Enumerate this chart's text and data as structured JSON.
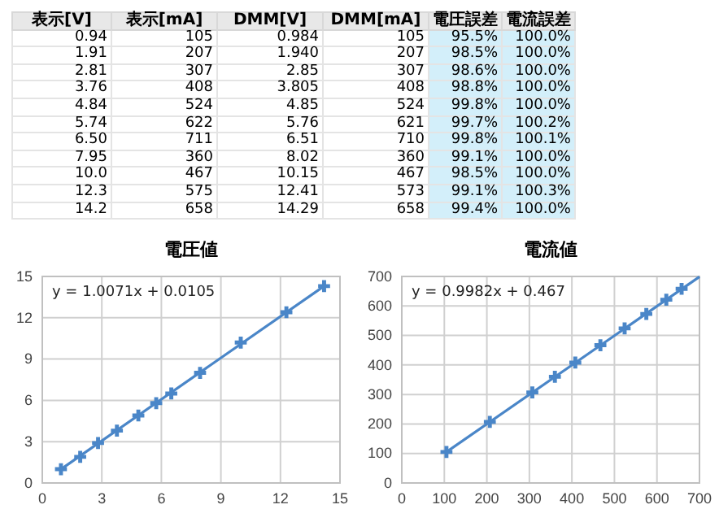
{
  "chart_data": [
    {
      "type": "other",
      "categories": [
        "表示[V]",
        "表示[mA]",
        "DMM[V]",
        "DMM[mA]",
        "電圧誤差",
        "電流誤差"
      ],
      "cell_labels": [
        [
          "0.94",
          "105",
          "0.984",
          "105",
          "95.5%",
          "100.0%"
        ],
        [
          "1.91",
          "207",
          "1.940",
          "207",
          "98.5%",
          "100.0%"
        ],
        [
          "2.81",
          "307",
          "2.85",
          "307",
          "98.6%",
          "100.0%"
        ],
        [
          "3.76",
          "408",
          "3.805",
          "408",
          "98.8%",
          "100.0%"
        ],
        [
          "4.84",
          "524",
          "4.85",
          "524",
          "99.8%",
          "100.0%"
        ],
        [
          "5.74",
          "622",
          "5.76",
          "621",
          "99.7%",
          "100.2%"
        ],
        [
          "6.50",
          "711",
          "6.51",
          "710",
          "99.8%",
          "100.1%"
        ],
        [
          "7.95",
          "360",
          "8.02",
          "360",
          "99.1%",
          "100.0%"
        ],
        [
          "10.0",
          "467",
          "10.15",
          "467",
          "98.5%",
          "100.0%"
        ],
        [
          "12.3",
          "575",
          "12.41",
          "573",
          "99.1%",
          "100.3%"
        ],
        [
          "14.2",
          "658",
          "14.29",
          "658",
          "99.4%",
          "100.0%"
        ]
      ]
    },
    {
      "type": "scatter",
      "title": "電圧値",
      "xlim": [
        0,
        15
      ],
      "ylim": [
        0,
        15
      ],
      "xticks": [
        0,
        3,
        6,
        9,
        12,
        15
      ],
      "yticks": [
        0,
        3,
        6,
        9,
        12,
        15
      ],
      "grid": true,
      "annotations": [
        "y = 1.0071x + 0.0105"
      ],
      "series": [
        {
          "type": "line",
          "color": "#4a86c8",
          "x": [
            0.94,
            14.2
          ],
          "values": [
            1.0,
            14.3
          ]
        },
        {
          "type": "scatter",
          "color": "#4a86c8",
          "marker": "cross",
          "x": [
            0.94,
            1.91,
            2.81,
            3.76,
            4.84,
            5.74,
            6.5,
            7.95,
            10.0,
            12.3,
            14.2
          ],
          "values": [
            1.0,
            1.9,
            2.9,
            3.8,
            4.9,
            5.8,
            6.5,
            8.0,
            10.2,
            12.4,
            14.3
          ]
        }
      ]
    },
    {
      "type": "scatter",
      "title": "電流値",
      "xlim": [
        0,
        700
      ],
      "ylim": [
        0,
        700
      ],
      "xticks": [
        0,
        100,
        200,
        300,
        400,
        500,
        600,
        700
      ],
      "yticks": [
        0,
        100,
        200,
        300,
        400,
        500,
        600,
        700
      ],
      "grid": true,
      "annotations": [
        "y = 0.9982x + 0.467"
      ],
      "series": [
        {
          "type": "line",
          "color": "#4a86c8",
          "x": [
            105,
            700
          ],
          "values": [
            105,
            699
          ]
        },
        {
          "type": "scatter",
          "color": "#4a86c8",
          "marker": "cross",
          "x": [
            105,
            207,
            307,
            408,
            524,
            622,
            null,
            360,
            467,
            575,
            658
          ],
          "values": [
            105,
            207,
            307,
            408,
            524,
            621,
            null,
            360,
            467,
            573,
            658
          ]
        }
      ]
    }
  ]
}
